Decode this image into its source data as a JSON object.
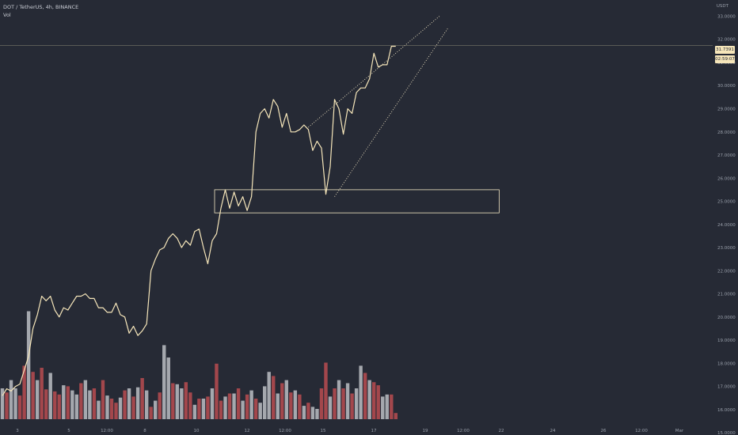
{
  "header": {
    "symbol_line": "DOT / TetherUS, 4h, BINANCE",
    "indicator": "Vol"
  },
  "axis": {
    "unit": "USDT",
    "current_price_label": "31.7391",
    "countdown_label": "02:59:07"
  },
  "colors": {
    "background": "#262a35",
    "price_line": "#f6e6ba",
    "volume_up": "#a5a8ae",
    "volume_down": "#a3474c",
    "annotation": "#f3e7c4",
    "axis_text": "#9aa0ab"
  },
  "chart_data": {
    "type": "line",
    "y_ticks": [
      "15.0000",
      "16.0000",
      "17.0000",
      "18.0000",
      "19.0000",
      "20.0000",
      "21.0000",
      "22.0000",
      "23.0000",
      "24.0000",
      "25.0000",
      "26.0000",
      "27.0000",
      "28.0000",
      "29.0000",
      "30.0000",
      "31.0000",
      "32.0000",
      "33.0000"
    ],
    "ylim": [
      14.9,
      33.7
    ],
    "x_ticks": [
      "3",
      "5",
      "12:00",
      "8",
      "10",
      "12",
      "12:00",
      "15",
      "17",
      "19",
      "12:00",
      "22",
      "24",
      "26",
      "12:00",
      "Mar"
    ],
    "current_price": 31.7391,
    "price": [
      16.6,
      16.9,
      16.8,
      17.0,
      17.1,
      17.7,
      18.3,
      19.5,
      20.1,
      20.9,
      20.7,
      20.9,
      20.3,
      20.0,
      20.4,
      20.3,
      20.6,
      20.9,
      20.9,
      21.0,
      20.8,
      20.8,
      20.4,
      20.4,
      20.2,
      20.2,
      20.6,
      20.1,
      20.0,
      19.3,
      19.6,
      19.2,
      19.4,
      19.7,
      22.0,
      22.5,
      22.9,
      23.0,
      23.4,
      23.6,
      23.4,
      23.0,
      23.3,
      23.1,
      23.7,
      23.8,
      23.0,
      22.3,
      23.3,
      23.6,
      24.7,
      25.5,
      24.7,
      25.4,
      24.8,
      25.2,
      24.6,
      25.2,
      28.0,
      28.8,
      29.0,
      28.6,
      29.4,
      29.1,
      28.2,
      28.8,
      28.0,
      28.0,
      28.1,
      28.3,
      28.1,
      27.2,
      27.6,
      27.3,
      25.3,
      26.5,
      29.4,
      29.0,
      27.9,
      29.0,
      28.8,
      29.7,
      29.9,
      29.9,
      30.3,
      31.4,
      30.8,
      30.9,
      30.9,
      31.7,
      31.7
    ],
    "volume": [
      {
        "v": 0.3,
        "up": true
      },
      {
        "v": 0.26,
        "up": false
      },
      {
        "v": 0.38,
        "up": true
      },
      {
        "v": 0.3,
        "up": true
      },
      {
        "v": 0.23,
        "up": false
      },
      {
        "v": 0.52,
        "up": false
      },
      {
        "v": 1.05,
        "up": true
      },
      {
        "v": 0.46,
        "up": false
      },
      {
        "v": 0.38,
        "up": true
      },
      {
        "v": 0.5,
        "up": false
      },
      {
        "v": 0.29,
        "up": false
      },
      {
        "v": 0.45,
        "up": true
      },
      {
        "v": 0.27,
        "up": false
      },
      {
        "v": 0.24,
        "up": false
      },
      {
        "v": 0.33,
        "up": true
      },
      {
        "v": 0.32,
        "up": false
      },
      {
        "v": 0.28,
        "up": true
      },
      {
        "v": 0.24,
        "up": true
      },
      {
        "v": 0.35,
        "up": false
      },
      {
        "v": 0.38,
        "up": true
      },
      {
        "v": 0.28,
        "up": true
      },
      {
        "v": 0.3,
        "up": false
      },
      {
        "v": 0.18,
        "up": true
      },
      {
        "v": 0.38,
        "up": false
      },
      {
        "v": 0.23,
        "up": true
      },
      {
        "v": 0.2,
        "up": false
      },
      {
        "v": 0.16,
        "up": false
      },
      {
        "v": 0.21,
        "up": true
      },
      {
        "v": 0.28,
        "up": false
      },
      {
        "v": 0.3,
        "up": true
      },
      {
        "v": 0.22,
        "up": false
      },
      {
        "v": 0.31,
        "up": true
      },
      {
        "v": 0.4,
        "up": false
      },
      {
        "v": 0.28,
        "up": true
      },
      {
        "v": 0.12,
        "up": false
      },
      {
        "v": 0.18,
        "up": true
      },
      {
        "v": 0.26,
        "up": false
      },
      {
        "v": 0.72,
        "up": true
      },
      {
        "v": 0.6,
        "up": true
      },
      {
        "v": 0.35,
        "up": false
      },
      {
        "v": 0.34,
        "up": true
      },
      {
        "v": 0.3,
        "up": true
      },
      {
        "v": 0.36,
        "up": false
      },
      {
        "v": 0.26,
        "up": false
      },
      {
        "v": 0.14,
        "up": true
      },
      {
        "v": 0.2,
        "up": false
      },
      {
        "v": 0.2,
        "up": true
      },
      {
        "v": 0.22,
        "up": false
      },
      {
        "v": 0.3,
        "up": true
      },
      {
        "v": 0.54,
        "up": false
      },
      {
        "v": 0.18,
        "up": false
      },
      {
        "v": 0.22,
        "up": true
      },
      {
        "v": 0.25,
        "up": false
      },
      {
        "v": 0.25,
        "up": true
      },
      {
        "v": 0.3,
        "up": false
      },
      {
        "v": 0.18,
        "up": true
      },
      {
        "v": 0.24,
        "up": false
      },
      {
        "v": 0.28,
        "up": true
      },
      {
        "v": 0.2,
        "up": false
      },
      {
        "v": 0.16,
        "up": true
      },
      {
        "v": 0.32,
        "up": true
      },
      {
        "v": 0.46,
        "up": true
      },
      {
        "v": 0.42,
        "up": false
      },
      {
        "v": 0.25,
        "up": true
      },
      {
        "v": 0.35,
        "up": false
      },
      {
        "v": 0.38,
        "up": true
      },
      {
        "v": 0.26,
        "up": false
      },
      {
        "v": 0.28,
        "up": true
      },
      {
        "v": 0.24,
        "up": false
      },
      {
        "v": 0.13,
        "up": true
      },
      {
        "v": 0.16,
        "up": false
      },
      {
        "v": 0.12,
        "up": true
      },
      {
        "v": 0.1,
        "up": true
      },
      {
        "v": 0.3,
        "up": false
      },
      {
        "v": 0.55,
        "up": false
      },
      {
        "v": 0.22,
        "up": true
      },
      {
        "v": 0.3,
        "up": false
      },
      {
        "v": 0.38,
        "up": true
      },
      {
        "v": 0.3,
        "up": false
      },
      {
        "v": 0.35,
        "up": true
      },
      {
        "v": 0.25,
        "up": false
      },
      {
        "v": 0.3,
        "up": true
      },
      {
        "v": 0.52,
        "up": true
      },
      {
        "v": 0.45,
        "up": false
      },
      {
        "v": 0.38,
        "up": true
      },
      {
        "v": 0.36,
        "up": false
      },
      {
        "v": 0.33,
        "up": false
      },
      {
        "v": 0.22,
        "up": true
      },
      {
        "v": 0.24,
        "up": true
      },
      {
        "v": 0.24,
        "up": false
      },
      {
        "v": 0.06,
        "up": false
      }
    ],
    "annotations": {
      "support_box": {
        "price_low": 24.5,
        "price_high": 25.5,
        "from_index": 50,
        "to_index": 174
      },
      "upper_trendline": {
        "from": [
          70,
          28.2
        ],
        "to": [
          100,
          33.0
        ]
      },
      "lower_trendline": {
        "from": [
          76,
          25.2
        ],
        "to": [
          102,
          32.5
        ]
      }
    }
  }
}
